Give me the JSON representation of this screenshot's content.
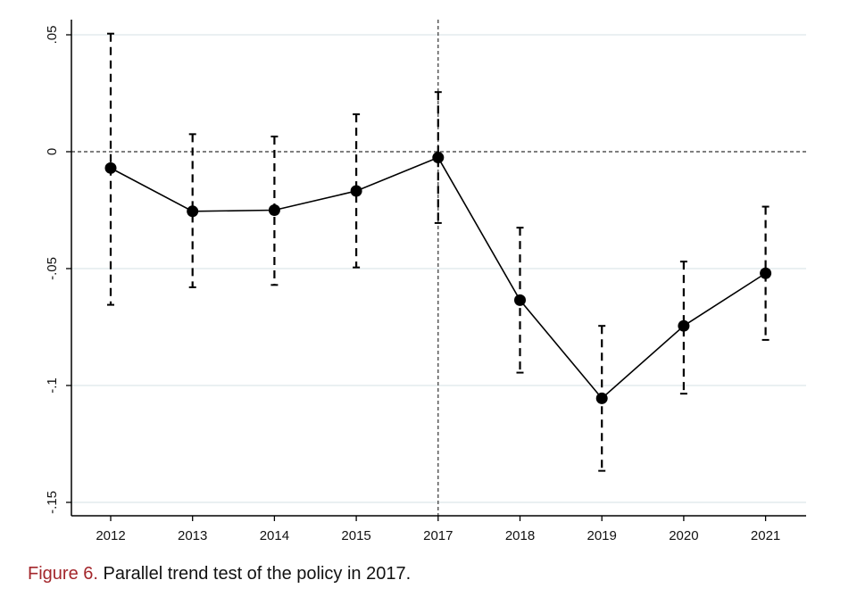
{
  "chart_data": {
    "type": "line",
    "categories": [
      "2012",
      "2013",
      "2014",
      "2015",
      "2017",
      "2018",
      "2019",
      "2020",
      "2021"
    ],
    "x": [
      2012,
      2013,
      2014,
      2015,
      2017,
      2018,
      2019,
      2020,
      2021
    ],
    "y_ticks": [
      ".05",
      "0",
      "-.05",
      "-.1",
      "-.15"
    ],
    "y_tick_values": [
      0.05,
      0,
      -0.05,
      -0.1,
      -0.15
    ],
    "ylim": [
      -0.155,
      0.057
    ],
    "series": [
      {
        "values": [
          -0.007,
          -0.0255,
          -0.025,
          -0.0168,
          -0.0025,
          -0.0635,
          -0.1055,
          -0.0745,
          -0.052
        ],
        "ci_upper": [
          0.0505,
          0.0075,
          0.0065,
          0.016,
          0.0255,
          -0.0325,
          -0.0745,
          -0.047,
          -0.0235
        ],
        "ci_lower": [
          -0.0655,
          -0.058,
          -0.057,
          -0.0495,
          -0.0305,
          -0.0945,
          -0.1365,
          -0.1035,
          -0.0805
        ]
      }
    ],
    "reference_lines": {
      "y": 0,
      "x": "2017"
    },
    "grid": true,
    "xlabel": "",
    "ylabel": "",
    "title": ""
  },
  "caption": {
    "label": "Figure 6.",
    "text": " Parallel trend test of the policy in 2017."
  },
  "colors": {
    "line": "#000000",
    "grid": "#dde6ea",
    "caption_label": "#a3262b"
  }
}
